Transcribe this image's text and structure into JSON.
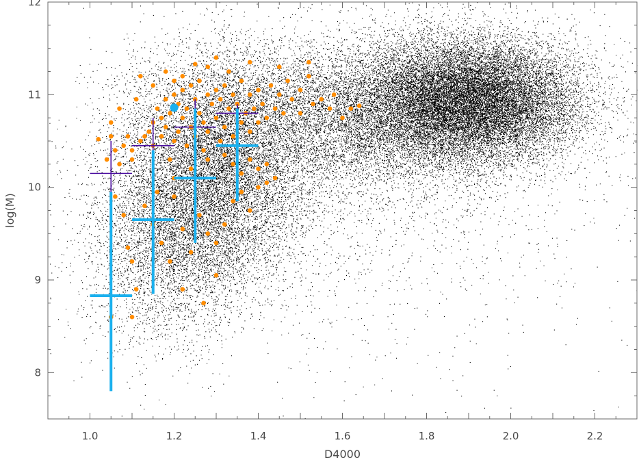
{
  "chart_data": {
    "type": "scatter",
    "title": "",
    "xlabel": "D4000",
    "ylabel": "log(M)",
    "xlim": [
      0.9,
      2.3
    ],
    "ylim": [
      7.5,
      12.0
    ],
    "xticks": [
      "1.0",
      "1.2",
      "1.4",
      "1.6",
      "1.8",
      "2.0",
      "2.2"
    ],
    "yticks": [
      "8",
      "9",
      "10",
      "11",
      "12"
    ],
    "grid": false,
    "legend": "none",
    "series": [
      {
        "kind": "background-cloud",
        "color": "#000000",
        "description_points": "dense field of black dots, two populations",
        "clusters": [
          {
            "cx": 1.9,
            "cy": 10.95,
            "sx": 0.13,
            "sy": 0.33,
            "weight": 0.43
          },
          {
            "cx": 1.62,
            "cy": 10.75,
            "sx": 0.22,
            "sy": 0.42,
            "weight": 0.22
          },
          {
            "cx": 1.3,
            "cy": 10.2,
            "sx": 0.11,
            "sy": 0.6,
            "weight": 0.2
          },
          {
            "cx": 1.2,
            "cy": 9.45,
            "sx": 0.1,
            "sy": 0.55,
            "weight": 0.1
          },
          {
            "cx": 1.55,
            "cy": 9.9,
            "sx": 0.35,
            "sy": 0.9,
            "weight": 0.05
          }
        ]
      },
      {
        "kind": "scatter",
        "color": "#ff8c00",
        "points": [
          [
            1.02,
            10.52
          ],
          [
            1.05,
            10.55
          ],
          [
            1.06,
            10.4
          ],
          [
            1.07,
            10.25
          ],
          [
            1.08,
            10.45
          ],
          [
            1.09,
            10.55
          ],
          [
            1.1,
            10.3
          ],
          [
            1.1,
            10.4
          ],
          [
            1.12,
            10.5
          ],
          [
            1.13,
            10.55
          ],
          [
            1.14,
            10.6
          ],
          [
            1.15,
            10.7
          ],
          [
            1.15,
            10.45
          ],
          [
            1.16,
            10.85
          ],
          [
            1.17,
            10.75
          ],
          [
            1.17,
            10.55
          ],
          [
            1.18,
            10.95
          ],
          [
            1.18,
            10.65
          ],
          [
            1.19,
            10.3
          ],
          [
            1.19,
            10.8
          ],
          [
            1.2,
            11.0
          ],
          [
            1.2,
            10.5
          ],
          [
            1.21,
            10.9
          ],
          [
            1.21,
            10.6
          ],
          [
            1.22,
            11.05
          ],
          [
            1.22,
            10.75
          ],
          [
            1.23,
            10.45
          ],
          [
            1.23,
            10.85
          ],
          [
            1.24,
            11.1
          ],
          [
            1.24,
            10.65
          ],
          [
            1.25,
            10.95
          ],
          [
            1.25,
            10.55
          ],
          [
            1.26,
            11.15
          ],
          [
            1.26,
            10.8
          ],
          [
            1.27,
            10.4
          ],
          [
            1.27,
            10.7
          ],
          [
            1.28,
            11.0
          ],
          [
            1.28,
            10.6
          ],
          [
            1.29,
            10.9
          ],
          [
            1.3,
            11.05
          ],
          [
            1.3,
            10.75
          ],
          [
            1.31,
            10.5
          ],
          [
            1.31,
            10.95
          ],
          [
            1.32,
            11.1
          ],
          [
            1.32,
            10.65
          ],
          [
            1.33,
            10.85
          ],
          [
            1.34,
            11.0
          ],
          [
            1.34,
            10.55
          ],
          [
            1.35,
            10.9
          ],
          [
            1.36,
            10.7
          ],
          [
            1.36,
            11.15
          ],
          [
            1.37,
            10.8
          ],
          [
            1.38,
            11.0
          ],
          [
            1.38,
            10.6
          ],
          [
            1.39,
            10.85
          ],
          [
            1.4,
            11.05
          ],
          [
            1.4,
            10.7
          ],
          [
            1.41,
            10.9
          ],
          [
            1.42,
            10.75
          ],
          [
            1.43,
            11.1
          ],
          [
            1.44,
            10.85
          ],
          [
            1.45,
            11.0
          ],
          [
            1.46,
            10.8
          ],
          [
            1.47,
            11.15
          ],
          [
            1.48,
            10.95
          ],
          [
            1.5,
            11.05
          ],
          [
            1.5,
            10.8
          ],
          [
            1.52,
            11.2
          ],
          [
            1.53,
            10.9
          ],
          [
            1.55,
            10.95
          ],
          [
            1.57,
            10.85
          ],
          [
            1.58,
            11.0
          ],
          [
            1.6,
            10.75
          ],
          [
            1.62,
            10.85
          ],
          [
            1.64,
            10.88
          ],
          [
            1.12,
            11.2
          ],
          [
            1.18,
            11.25
          ],
          [
            1.22,
            11.2
          ],
          [
            1.28,
            11.3
          ],
          [
            1.33,
            11.25
          ],
          [
            1.38,
            11.35
          ],
          [
            1.45,
            11.3
          ],
          [
            1.52,
            11.35
          ],
          [
            1.3,
            11.4
          ],
          [
            1.25,
            11.33
          ],
          [
            1.2,
            11.15
          ],
          [
            1.15,
            11.1
          ],
          [
            1.11,
            10.95
          ],
          [
            1.07,
            10.85
          ],
          [
            1.05,
            10.7
          ],
          [
            1.04,
            10.3
          ],
          [
            1.06,
            9.9
          ],
          [
            1.08,
            9.7
          ],
          [
            1.09,
            9.35
          ],
          [
            1.1,
            9.2
          ],
          [
            1.11,
            8.9
          ],
          [
            1.1,
            8.6
          ],
          [
            1.05,
            8.6
          ],
          [
            1.13,
            9.8
          ],
          [
            1.15,
            9.6
          ],
          [
            1.17,
            9.4
          ],
          [
            1.19,
            9.2
          ],
          [
            1.2,
            9.9
          ],
          [
            1.22,
            9.55
          ],
          [
            1.24,
            9.3
          ],
          [
            1.26,
            9.7
          ],
          [
            1.28,
            9.5
          ],
          [
            1.3,
            9.05
          ],
          [
            1.32,
            9.6
          ],
          [
            1.34,
            9.85
          ],
          [
            1.36,
            9.95
          ],
          [
            1.38,
            9.75
          ],
          [
            1.4,
            10.0
          ],
          [
            1.42,
            10.05
          ],
          [
            1.44,
            10.1
          ],
          [
            1.42,
            10.25
          ],
          [
            1.4,
            10.2
          ],
          [
            1.38,
            10.3
          ],
          [
            1.36,
            10.15
          ],
          [
            1.34,
            10.25
          ],
          [
            1.22,
            8.9
          ],
          [
            1.27,
            8.75
          ],
          [
            1.3,
            9.4
          ],
          [
            1.16,
            9.95
          ],
          [
            1.2,
            10.1
          ],
          [
            1.24,
            10.2
          ],
          [
            1.28,
            10.3
          ],
          [
            1.32,
            10.35
          ]
        ]
      },
      {
        "kind": "crosses",
        "color": "#4b0fa0",
        "line_width": 1.6,
        "items": [
          {
            "x": 1.05,
            "y": 10.15,
            "xerr": 0.05,
            "y_low": 9.4,
            "y_high": 10.5
          },
          {
            "x": 1.15,
            "y": 10.45,
            "xerr": 0.05,
            "y_low": 9.9,
            "y_high": 10.75
          },
          {
            "x": 1.25,
            "y": 10.65,
            "xerr": 0.05,
            "y_low": 10.2,
            "y_high": 10.95
          },
          {
            "x": 1.35,
            "y": 10.8,
            "xerr": 0.05,
            "y_low": 10.45,
            "y_high": 10.9
          }
        ]
      },
      {
        "kind": "crosses",
        "color": "#1ab0ee",
        "line_width": 4,
        "items": [
          {
            "x": 1.05,
            "y": 8.83,
            "xerr": 0.05,
            "y_low": 7.8,
            "y_high": 9.95
          },
          {
            "x": 1.15,
            "y": 9.65,
            "xerr": 0.05,
            "y_low": 8.85,
            "y_high": 10.4
          },
          {
            "x": 1.25,
            "y": 10.1,
            "xerr": 0.05,
            "y_low": 9.4,
            "y_high": 10.85
          },
          {
            "x": 1.35,
            "y": 10.45,
            "xerr": 0.05,
            "y_low": 9.85,
            "y_high": 10.85
          }
        ]
      },
      {
        "kind": "marker",
        "color": "#1ab0ee",
        "points": [
          [
            1.2,
            10.86
          ]
        ]
      }
    ]
  }
}
